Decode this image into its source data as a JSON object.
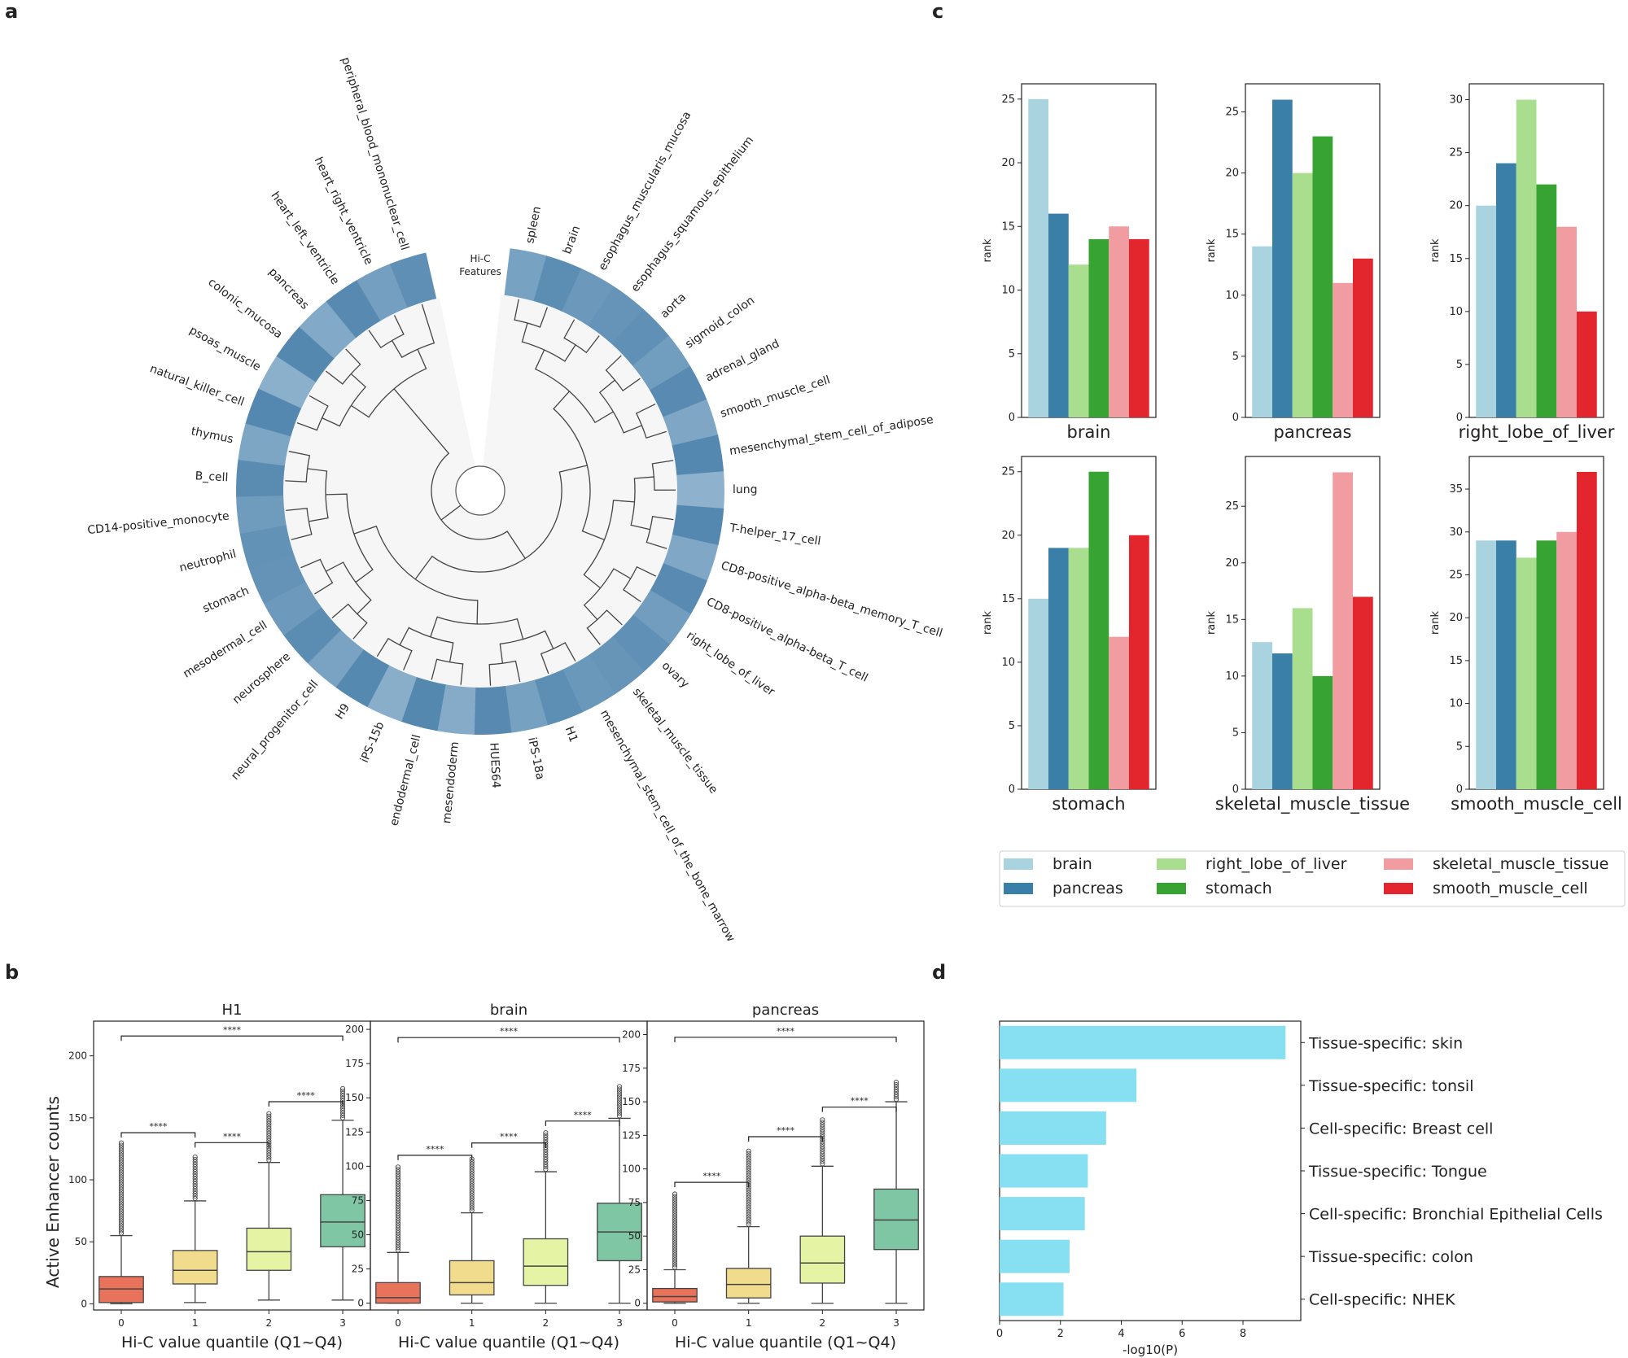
{
  "panels": [
    "a",
    "b",
    "c",
    "d"
  ],
  "chart_data": [
    {
      "panel": "a",
      "type": "circular-dendrogram-heatmap",
      "title": "Hi-C Features",
      "leaves": [
        "spleen",
        "brain",
        "esophagus_muscularis_mucosa",
        "esophagus_squamous_epithelium",
        "aorta",
        "sigmoid_colon",
        "adrenal_gland",
        "smooth_muscle_cell",
        "mesenchymal_stem_cell_of_adipose",
        "lung",
        "T-helper_17_cell",
        "CD8-positive_alpha-beta_memory_T_cell",
        "CD8-positive_alpha-beta_T_cell",
        "right_lobe_of_liver",
        "ovary",
        "skeletal_muscle_tissue",
        "mesenchymal_stem_cell_of_the_bone_marrow",
        "H1",
        "iPS-18a",
        "HUES64",
        "mesendoderm",
        "endodermal_cell",
        "iPS-15b",
        "H9",
        "neural_progenitor_cell",
        "neurosphere",
        "mesodermal_cell",
        "stomach",
        "neutrophil",
        "CD14-positive_monocyte",
        "B_cell",
        "thymus",
        "natural_killer_cell",
        "psoas_muscle",
        "colonic_mucosa",
        "pancreas",
        "heart_left_ventricle",
        "heart_right_ventricle",
        "peripheral_blood_mononuclear_cell"
      ],
      "colors": {
        "light": "#b3cde0",
        "dark": "#4a80aa"
      }
    },
    {
      "panel": "b",
      "type": "box",
      "ylabel": "Active Enhancer counts",
      "xlabel": "Hi-C value quantile (Q1~Q4)",
      "categories": [
        "0",
        "1",
        "2",
        "3"
      ],
      "box_colors": [
        "#e8735a",
        "#f1dc8e",
        "#e4f4a4",
        "#7fc6a4"
      ],
      "significance": "****",
      "subplots": [
        {
          "title": "H1",
          "ylim": [
            -5,
            228
          ],
          "yticks": [
            0,
            50,
            100,
            150,
            200
          ],
          "boxes": [
            {
              "q1": 1,
              "med": 12,
              "q3": 22,
              "lo": 0,
              "hi": 55,
              "fmax": 130
            },
            {
              "q1": 16,
              "med": 27,
              "q3": 43,
              "lo": 1,
              "hi": 83,
              "fmax": 120
            },
            {
              "q1": 27,
              "med": 42,
              "q3": 61,
              "lo": 3,
              "hi": 114,
              "fmax": 155
            },
            {
              "q1": 46,
              "med": 66,
              "q3": 88,
              "lo": 3,
              "hi": 148,
              "fmax": 174
            }
          ]
        },
        {
          "title": "brain",
          "ylim": [
            -5,
            206
          ],
          "yticks": [
            0,
            25,
            50,
            75,
            100,
            125,
            150,
            175,
            200
          ],
          "boxes": [
            {
              "q1": 0,
              "med": 4,
              "q3": 15,
              "lo": 0,
              "hi": 37,
              "fmax": 100
            },
            {
              "q1": 6,
              "med": 15,
              "q3": 31,
              "lo": 0,
              "hi": 66,
              "fmax": 107
            },
            {
              "q1": 13,
              "med": 27,
              "q3": 47,
              "lo": 0,
              "hi": 96,
              "fmax": 125
            },
            {
              "q1": 31,
              "med": 52,
              "q3": 73,
              "lo": 0,
              "hi": 135,
              "fmax": 159
            }
          ]
        },
        {
          "title": "pancreas",
          "ylim": [
            -5,
            210
          ],
          "yticks": [
            0,
            25,
            50,
            75,
            100,
            125,
            150,
            175,
            200
          ],
          "boxes": [
            {
              "q1": 1,
              "med": 5,
              "q3": 11,
              "lo": 0,
              "hi": 25,
              "fmax": 82
            },
            {
              "q1": 4,
              "med": 14,
              "q3": 26,
              "lo": 0,
              "hi": 57,
              "fmax": 114
            },
            {
              "q1": 15,
              "med": 30,
              "q3": 50,
              "lo": 0,
              "hi": 102,
              "fmax": 138
            },
            {
              "q1": 40,
              "med": 62,
              "q3": 85,
              "lo": 0,
              "hi": 150,
              "fmax": 166
            }
          ]
        }
      ]
    },
    {
      "panel": "c",
      "type": "bar",
      "ylabel": "rank",
      "series_names": [
        "brain",
        "pancreas",
        "right_lobe_of_liver",
        "stomach",
        "skeletal_muscle_tissue",
        "smooth_muscle_cell"
      ],
      "series_colors": [
        "#a8d3df",
        "#3a7fa8",
        "#a8de8e",
        "#36a333",
        "#f19ca0",
        "#e3262e"
      ],
      "legend": [
        "brain",
        "right_lobe_of_liver",
        "skeletal_muscle_tissue",
        "pancreas",
        "stomach",
        "smooth_muscle_cell"
      ],
      "subplots": [
        {
          "title": "brain",
          "values": [
            25,
            16,
            12,
            14,
            15,
            14
          ],
          "ylim": [
            0,
            26.2
          ],
          "yticks": [
            0,
            5,
            10,
            15,
            20,
            25
          ]
        },
        {
          "title": "pancreas",
          "values": [
            14,
            26,
            20,
            23,
            11,
            13
          ],
          "ylim": [
            0,
            27.3
          ],
          "yticks": [
            0,
            5,
            10,
            15,
            20,
            25
          ]
        },
        {
          "title": "right_lobe_of_liver",
          "values": [
            20,
            24,
            30,
            22,
            18,
            10
          ],
          "ylim": [
            0,
            31.5
          ],
          "yticks": [
            0,
            5,
            10,
            15,
            20,
            25,
            30
          ]
        },
        {
          "title": "stomach",
          "values": [
            15,
            19,
            19,
            25,
            12,
            20
          ],
          "ylim": [
            0,
            26.2
          ],
          "yticks": [
            0,
            5,
            10,
            15,
            20,
            25
          ]
        },
        {
          "title": "skeletal_muscle_tissue",
          "values": [
            13,
            12,
            16,
            10,
            28,
            17
          ],
          "ylim": [
            0,
            29.4
          ],
          "yticks": [
            0,
            5,
            10,
            15,
            20,
            25
          ]
        },
        {
          "title": "smooth_muscle_cell",
          "values": [
            29,
            29,
            27,
            29,
            30,
            37
          ],
          "ylim": [
            0,
            38.8
          ],
          "yticks": [
            0,
            5,
            10,
            15,
            20,
            25,
            30,
            35
          ]
        }
      ]
    },
    {
      "panel": "d",
      "type": "barh",
      "xlabel": "-log10(P)",
      "categories": [
        "Tissue-specific: skin",
        "Tissue-specific: tonsil",
        "Cell-specific: Breast cell",
        "Tissue-specific: Tongue",
        "Cell-specific: Bronchial Epithelial Cells",
        "Tissue-specific: colon",
        "Cell-specific: NHEK"
      ],
      "values": [
        9.4,
        4.5,
        3.5,
        2.9,
        2.8,
        2.3,
        2.1
      ],
      "xlim": [
        0,
        9.9
      ],
      "xticks": [
        0,
        2,
        4,
        6,
        8
      ],
      "color": "#87dff2"
    }
  ]
}
